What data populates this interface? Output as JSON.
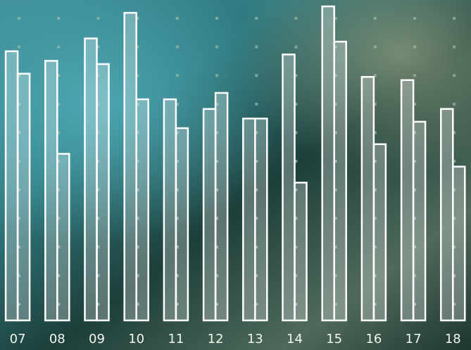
{
  "chart_data": {
    "type": "bar",
    "categories": [
      "07",
      "08",
      "09",
      "10",
      "11",
      "12",
      "13",
      "14",
      "15",
      "16",
      "17",
      "18"
    ],
    "series": [
      {
        "color": "#ffffff",
        "values": [
          84,
          81,
          88,
          96,
          69,
          66,
          63,
          83,
          98,
          76,
          75,
          66
        ]
      },
      {
        "color": "#ffffff",
        "values": [
          77,
          52,
          80,
          69,
          60,
          71,
          63,
          43,
          87,
          55,
          62,
          48
        ]
      }
    ],
    "ylim": [
      0,
      100
    ]
  }
}
